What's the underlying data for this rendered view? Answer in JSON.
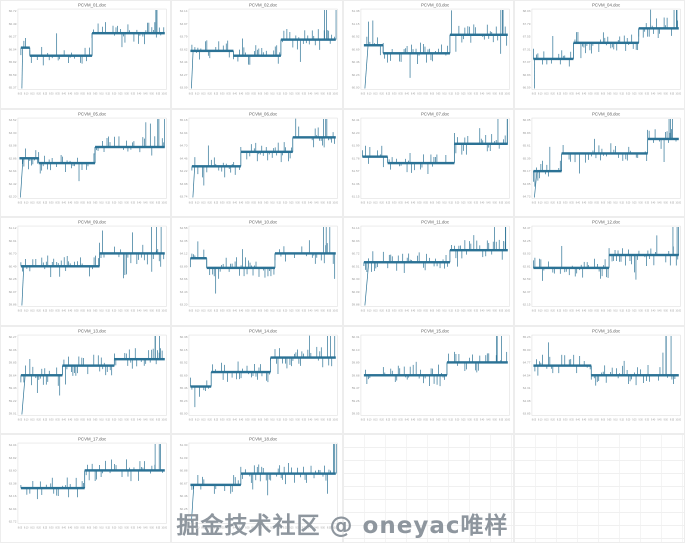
{
  "watermark": {
    "text": "掘金技术社区 @ oneyac唯样",
    "color": "#8e969e"
  },
  "chart_style": {
    "line_color": "#2b7295",
    "plot_border_color": "#d9d9d9",
    "tick_color": "#9b9b9b",
    "title_color": "#5f5f5f",
    "background": "#ffffff"
  },
  "x_ticks": [
    "8:05",
    "8:10",
    "8:15",
    "8:20",
    "8:25",
    "8:30",
    "8:35",
    "8:40",
    "8:45",
    "8:50",
    "8:55",
    "9:00",
    "9:05",
    "9:10",
    "9:15",
    "9:20",
    "9:25",
    "9:30",
    "9:35",
    "9:40",
    "9:45",
    "9:50",
    "9:55",
    "10:00"
  ],
  "empty_cells": 2,
  "chart_data": [
    {
      "type": "line",
      "title": "PCVM_01.doc",
      "ylim": [
        0,
        1
      ],
      "y_ticks": [
        "66.72",
        "66.49",
        "66.27",
        "66.04",
        "65.82",
        "65.59",
        "65.37"
      ],
      "segments": [
        [
          0.02,
          0.08,
          0.52
        ],
        [
          0.08,
          0.5,
          0.42
        ],
        [
          0.5,
          0.99,
          0.7
        ]
      ]
    },
    {
      "type": "line",
      "title": "PCVM_02.doc",
      "ylim": [
        0,
        1
      ],
      "y_ticks": [
        "64.14",
        "63.97",
        "63.79",
        "63.62",
        "63.44",
        "63.27",
        "63.09"
      ],
      "segments": [
        [
          0.01,
          0.3,
          0.48
        ],
        [
          0.3,
          0.62,
          0.42
        ],
        [
          0.62,
          0.99,
          0.62
        ]
      ]
    },
    {
      "type": "line",
      "title": "PCVM_03.doc",
      "ylim": [
        0,
        1
      ],
      "y_ticks": [
        "61.38",
        "61.15",
        "60.92",
        "60.69",
        "60.46",
        "60.23",
        "60.00"
      ],
      "segments": [
        [
          0.02,
          0.15,
          0.55
        ],
        [
          0.15,
          0.6,
          0.45
        ],
        [
          0.6,
          0.99,
          0.68
        ]
      ]
    },
    {
      "type": "line",
      "title": "PCVM_04.doc",
      "ylim": [
        0,
        1
      ],
      "y_ticks": [
        "68.03",
        "67.79",
        "67.55",
        "67.31",
        "67.07",
        "66.83",
        "66.59"
      ],
      "segments": [
        [
          0.01,
          0.28,
          0.38
        ],
        [
          0.28,
          0.72,
          0.58
        ],
        [
          0.72,
          0.99,
          0.76
        ]
      ]
    },
    {
      "type": "line",
      "title": "PCVM_05.doc",
      "ylim": [
        0,
        1
      ],
      "y_ticks": [
        "63.52",
        "63.30",
        "63.08",
        "62.86",
        "62.64",
        "62.42",
        "62.20"
      ],
      "segments": [
        [
          0.01,
          0.14,
          0.5
        ],
        [
          0.14,
          0.52,
          0.44
        ],
        [
          0.52,
          0.99,
          0.64
        ]
      ]
    },
    {
      "type": "line",
      "title": "PCVM_06.doc",
      "ylim": [
        0,
        1
      ],
      "y_ticks": [
        "65.18",
        "64.94",
        "64.70",
        "64.46",
        "64.22",
        "63.98",
        "63.74"
      ],
      "segments": [
        [
          0.02,
          0.35,
          0.4
        ],
        [
          0.35,
          0.7,
          0.58
        ],
        [
          0.7,
          0.99,
          0.76
        ]
      ]
    },
    {
      "type": "line",
      "title": "PCVM_07.doc",
      "ylim": [
        0,
        1
      ],
      "y_ticks": [
        "62.41",
        "62.20",
        "61.99",
        "61.78",
        "61.57",
        "61.36",
        "61.15"
      ],
      "segments": [
        [
          0.01,
          0.18,
          0.52
        ],
        [
          0.18,
          0.63,
          0.44
        ],
        [
          0.63,
          0.99,
          0.68
        ]
      ]
    },
    {
      "type": "line",
      "title": "PCVM_08.doc",
      "ylim": [
        0,
        1
      ],
      "y_ticks": [
        "66.05",
        "65.83",
        "65.61",
        "65.39",
        "65.17",
        "64.95",
        "64.73"
      ],
      "segments": [
        [
          0.01,
          0.2,
          0.34
        ],
        [
          0.2,
          0.78,
          0.56
        ],
        [
          0.78,
          0.99,
          0.74
        ]
      ]
    },
    {
      "type": "line",
      "title": "PCVM_09.doc",
      "ylim": [
        0,
        1
      ],
      "y_ticks": [
        "61.12",
        "60.91",
        "60.70",
        "60.49",
        "60.28",
        "60.07",
        "59.86"
      ],
      "segments": [
        [
          0.02,
          0.55,
          0.5
        ],
        [
          0.55,
          0.99,
          0.66
        ]
      ]
    },
    {
      "type": "line",
      "title": "PCVM_10.doc",
      "ylim": [
        0,
        1
      ],
      "y_ticks": [
        "64.58",
        "64.35",
        "64.12",
        "63.89",
        "63.66",
        "63.43",
        "63.20"
      ],
      "segments": [
        [
          0.01,
          0.12,
          0.6
        ],
        [
          0.12,
          0.58,
          0.48
        ],
        [
          0.58,
          0.99,
          0.66
        ]
      ]
    },
    {
      "type": "line",
      "title": "PCVM_11.doc",
      "ylim": [
        0,
        1
      ],
      "y_ticks": [
        "61.14",
        "60.93",
        "60.72",
        "60.51",
        "60.30",
        "60.09",
        "59.88"
      ],
      "segments": [
        [
          0.02,
          0.6,
          0.55
        ],
        [
          0.6,
          0.99,
          0.7
        ]
      ]
    },
    {
      "type": "line",
      "title": "PCVM_12.doc",
      "ylim": [
        0,
        1
      ],
      "y_ticks": [
        "63.47",
        "63.25",
        "63.03",
        "62.81",
        "62.59",
        "62.37",
        "62.15"
      ],
      "segments": [
        [
          0.01,
          0.52,
          0.48
        ],
        [
          0.52,
          0.99,
          0.64
        ]
      ]
    },
    {
      "type": "line",
      "title": "PCVM_13.doc",
      "ylim": [
        0,
        1
      ],
      "y_ticks": [
        "60.27",
        "60.06",
        "59.85",
        "59.64",
        "59.43",
        "59.22",
        "59.01"
      ],
      "segments": [
        [
          0.02,
          0.3,
          0.5
        ],
        [
          0.3,
          0.65,
          0.62
        ],
        [
          0.65,
          0.99,
          0.7
        ]
      ]
    },
    {
      "type": "line",
      "title": "PCVM_14.doc",
      "ylim": [
        0,
        1
      ],
      "y_ticks": [
        "66.38",
        "66.15",
        "65.92",
        "65.69",
        "65.46",
        "65.23",
        "65.00"
      ],
      "segments": [
        [
          0.01,
          0.15,
          0.36
        ],
        [
          0.15,
          0.55,
          0.54
        ],
        [
          0.55,
          0.99,
          0.72
        ]
      ]
    },
    {
      "type": "line",
      "title": "PCVM_15.doc",
      "ylim": [
        0,
        1
      ],
      "y_ticks": [
        "60.31",
        "60.10",
        "59.89",
        "59.68",
        "59.47",
        "59.26",
        "59.05"
      ],
      "segments": [
        [
          0.02,
          0.58,
          0.5
        ],
        [
          0.58,
          0.99,
          0.66
        ]
      ]
    },
    {
      "type": "line",
      "title": "PCVM_16.doc",
      "ylim": [
        0,
        1
      ],
      "y_ticks": [
        "65.23",
        "65.00",
        "64.77",
        "64.54",
        "64.31",
        "64.08",
        "63.85"
      ],
      "segments": [
        [
          0.01,
          0.4,
          0.62
        ],
        [
          0.4,
          0.99,
          0.5
        ]
      ]
    },
    {
      "type": "line",
      "title": "PCVM_17.doc",
      "ylim": [
        0,
        1
      ],
      "y_ticks": [
        "64.04",
        "63.82",
        "63.60",
        "63.38",
        "63.16",
        "62.94",
        "62.72"
      ],
      "segments": [
        [
          0.02,
          0.45,
          0.44
        ],
        [
          0.45,
          0.99,
          0.66
        ]
      ]
    },
    {
      "type": "line",
      "title": "PCVM_18.doc",
      "ylim": [
        0,
        1
      ],
      "y_ticks": [
        "61.30",
        "61.09",
        "60.88",
        "60.67",
        "60.46",
        "60.25",
        "60.04"
      ],
      "segments": [
        [
          0.01,
          0.35,
          0.48
        ],
        [
          0.35,
          0.99,
          0.62
        ]
      ]
    }
  ]
}
